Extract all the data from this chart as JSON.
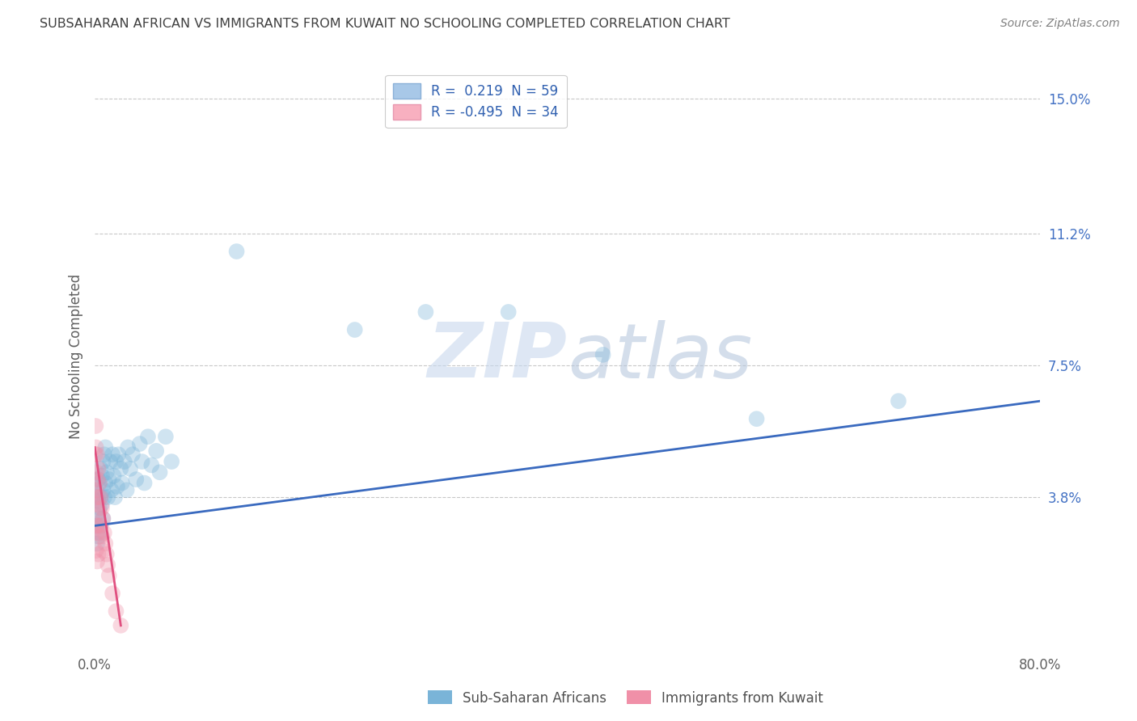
{
  "title": "SUBSAHARAN AFRICAN VS IMMIGRANTS FROM KUWAIT NO SCHOOLING COMPLETED CORRELATION CHART",
  "source": "Source: ZipAtlas.com",
  "ylabel": "No Schooling Completed",
  "y_tick_labels_right": [
    "3.8%",
    "7.5%",
    "11.2%",
    "15.0%"
  ],
  "y_tick_values": [
    0.038,
    0.075,
    0.112,
    0.15
  ],
  "xlim": [
    0.0,
    0.8
  ],
  "ylim": [
    -0.005,
    0.16
  ],
  "blue_scatter_x": [
    0.001,
    0.001,
    0.002,
    0.002,
    0.002,
    0.003,
    0.003,
    0.003,
    0.003,
    0.004,
    0.004,
    0.004,
    0.005,
    0.005,
    0.005,
    0.006,
    0.006,
    0.007,
    0.007,
    0.007,
    0.008,
    0.008,
    0.009,
    0.009,
    0.01,
    0.011,
    0.012,
    0.013,
    0.014,
    0.015,
    0.016,
    0.017,
    0.018,
    0.019,
    0.02,
    0.022,
    0.023,
    0.025,
    0.027,
    0.028,
    0.03,
    0.032,
    0.035,
    0.038,
    0.04,
    0.042,
    0.045,
    0.048,
    0.052,
    0.055,
    0.06,
    0.065,
    0.12,
    0.22,
    0.28,
    0.35,
    0.43,
    0.56,
    0.68
  ],
  "blue_scatter_y": [
    0.04,
    0.033,
    0.038,
    0.03,
    0.025,
    0.043,
    0.037,
    0.032,
    0.027,
    0.042,
    0.035,
    0.028,
    0.046,
    0.038,
    0.03,
    0.044,
    0.036,
    0.048,
    0.04,
    0.032,
    0.05,
    0.038,
    0.052,
    0.042,
    0.045,
    0.038,
    0.043,
    0.048,
    0.04,
    0.05,
    0.044,
    0.038,
    0.048,
    0.041,
    0.05,
    0.046,
    0.042,
    0.048,
    0.04,
    0.052,
    0.046,
    0.05,
    0.043,
    0.053,
    0.048,
    0.042,
    0.055,
    0.047,
    0.051,
    0.045,
    0.055,
    0.048,
    0.107,
    0.085,
    0.09,
    0.09,
    0.078,
    0.06,
    0.065
  ],
  "pink_scatter_x": [
    0.0005,
    0.0005,
    0.0008,
    0.001,
    0.001,
    0.001,
    0.001,
    0.001,
    0.002,
    0.002,
    0.002,
    0.002,
    0.002,
    0.003,
    0.003,
    0.003,
    0.003,
    0.004,
    0.004,
    0.004,
    0.005,
    0.005,
    0.006,
    0.006,
    0.007,
    0.007,
    0.008,
    0.009,
    0.01,
    0.011,
    0.012,
    0.015,
    0.018,
    0.022
  ],
  "pink_scatter_y": [
    0.05,
    0.04,
    0.058,
    0.052,
    0.045,
    0.038,
    0.03,
    0.023,
    0.05,
    0.043,
    0.036,
    0.028,
    0.02,
    0.046,
    0.038,
    0.03,
    0.022,
    0.042,
    0.034,
    0.027,
    0.038,
    0.03,
    0.035,
    0.027,
    0.032,
    0.023,
    0.028,
    0.025,
    0.022,
    0.019,
    0.016,
    0.011,
    0.006,
    0.002
  ],
  "blue_line_x": [
    0.0,
    0.8
  ],
  "blue_line_y": [
    0.03,
    0.065
  ],
  "pink_line_x": [
    0.0,
    0.022
  ],
  "pink_line_y": [
    0.052,
    0.002
  ],
  "dot_size_blue": 200,
  "dot_size_pink": 200,
  "dot_alpha_blue": 0.35,
  "dot_alpha_pink": 0.35,
  "dot_color_blue": "#7ab4d8",
  "dot_color_pink": "#f090a8",
  "trend_color_blue": "#3a6abf",
  "trend_color_pink": "#e05080",
  "grid_color": "#c8c8c8",
  "background_color": "#ffffff",
  "watermark_zip": "ZIP",
  "watermark_atlas": "atlas",
  "title_color": "#404040",
  "source_color": "#808080",
  "axis_label_color": "#606060",
  "right_tick_color": "#4472c4",
  "bottom_tick_labels": [
    "0.0%",
    "80.0%"
  ],
  "bottom_legend_labels": [
    "Sub-Saharan Africans",
    "Immigrants from Kuwait"
  ]
}
